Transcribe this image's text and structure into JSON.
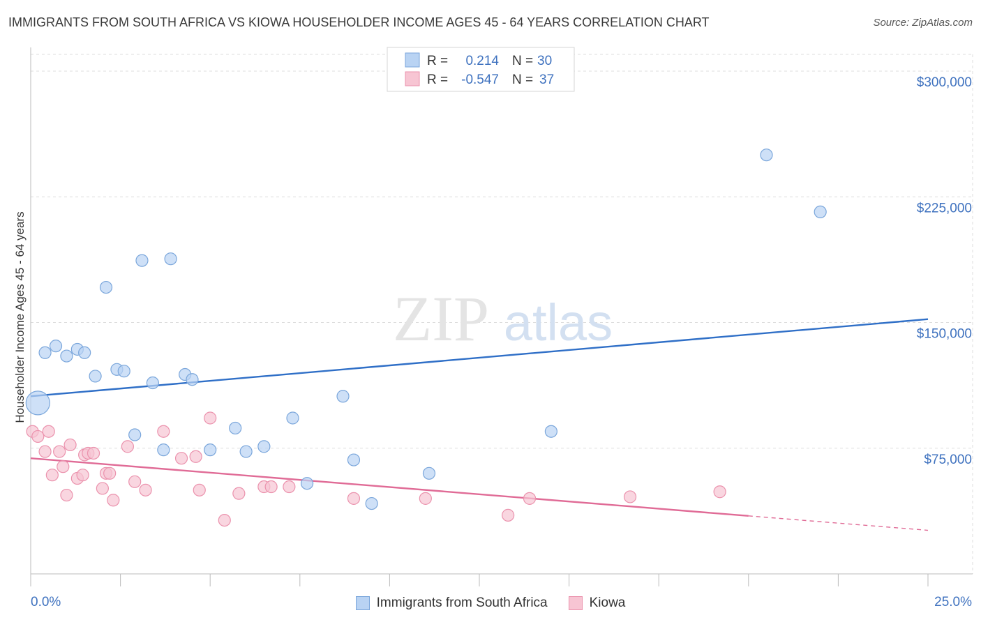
{
  "title": "IMMIGRANTS FROM SOUTH AFRICA VS KIOWA HOUSEHOLDER INCOME AGES 45 - 64 YEARS CORRELATION CHART",
  "source": "Source: ZipAtlas.com",
  "watermark": {
    "zip": "ZIP",
    "atlas": "atlas"
  },
  "colors": {
    "blue_fill": "#b9d3f3",
    "blue_stroke": "#7aa6db",
    "blue_line": "#2f6fc7",
    "pink_fill": "#f7c5d3",
    "pink_stroke": "#eb92ad",
    "pink_line": "#e06b96",
    "axis_text": "#3f72bf",
    "grid": "#dddddd"
  },
  "legend_top": [
    {
      "r_label": "R =",
      "r_value": "0.214",
      "n_label": "N =",
      "n_value": "30",
      "series": "blue"
    },
    {
      "r_label": "R =",
      "r_value": "-0.547",
      "n_label": "N =",
      "n_value": "37",
      "series": "pink"
    }
  ],
  "chart_data": {
    "type": "scatter",
    "title": "IMMIGRANTS FROM SOUTH AFRICA VS KIOWA HOUSEHOLDER INCOME AGES 45 - 64 YEARS CORRELATION CHART",
    "xlabel": "",
    "ylabel": "Householder Income Ages 45 - 64 years",
    "xlim": [
      0,
      25
    ],
    "ylim": [
      0,
      310000
    ],
    "x_tick_labels": [
      "0.0%",
      "25.0%"
    ],
    "y_ticks": [
      75000,
      150000,
      225000,
      300000
    ],
    "y_tick_labels": [
      "$75,000",
      "$150,000",
      "$225,000",
      "$300,000"
    ],
    "grid": true,
    "legend_placement": "top-center",
    "series": [
      {
        "name": "Immigrants from South Africa",
        "color": "#7aa6db",
        "points": [
          [
            0.2,
            102000,
            "large"
          ],
          [
            0.4,
            132000
          ],
          [
            0.7,
            136000
          ],
          [
            1.0,
            130000
          ],
          [
            1.3,
            134000
          ],
          [
            1.5,
            132000
          ],
          [
            1.8,
            118000
          ],
          [
            2.1,
            171000
          ],
          [
            2.4,
            122000
          ],
          [
            2.6,
            121000
          ],
          [
            2.9,
            83000
          ],
          [
            3.1,
            187000
          ],
          [
            3.4,
            114000
          ],
          [
            3.7,
            74000
          ],
          [
            3.9,
            188000
          ],
          [
            4.3,
            119000
          ],
          [
            4.5,
            116000
          ],
          [
            5.0,
            74000
          ],
          [
            5.7,
            87000
          ],
          [
            6.0,
            73000
          ],
          [
            6.5,
            76000
          ],
          [
            7.3,
            93000
          ],
          [
            7.7,
            54000
          ],
          [
            8.7,
            106000
          ],
          [
            9.0,
            68000
          ],
          [
            9.5,
            42000
          ],
          [
            11.1,
            60000
          ],
          [
            14.5,
            85000
          ],
          [
            20.5,
            250000
          ],
          [
            22.0,
            216000
          ]
        ],
        "trend": {
          "x": [
            0,
            25
          ],
          "y": [
            106000,
            152000
          ],
          "dashed_from": null
        }
      },
      {
        "name": "Kiowa",
        "color": "#eb92ad",
        "points": [
          [
            0.05,
            85000
          ],
          [
            0.2,
            82000
          ],
          [
            0.4,
            73000
          ],
          [
            0.5,
            85000
          ],
          [
            0.6,
            59000
          ],
          [
            0.8,
            73000
          ],
          [
            0.9,
            64000
          ],
          [
            1.0,
            47000
          ],
          [
            1.1,
            77000
          ],
          [
            1.3,
            57000
          ],
          [
            1.45,
            59000
          ],
          [
            1.5,
            71000
          ],
          [
            1.6,
            72000
          ],
          [
            1.75,
            72000
          ],
          [
            2.0,
            51000
          ],
          [
            2.1,
            60000
          ],
          [
            2.2,
            60000
          ],
          [
            2.3,
            44000
          ],
          [
            2.7,
            76000
          ],
          [
            2.9,
            55000
          ],
          [
            3.2,
            50000
          ],
          [
            3.7,
            85000
          ],
          [
            4.2,
            69000
          ],
          [
            4.6,
            70000
          ],
          [
            4.7,
            50000
          ],
          [
            5.0,
            93000
          ],
          [
            5.4,
            32000
          ],
          [
            5.8,
            48000
          ],
          [
            6.5,
            52000
          ],
          [
            6.7,
            52000
          ],
          [
            7.2,
            52000
          ],
          [
            9.0,
            45000
          ],
          [
            11.0,
            45000
          ],
          [
            13.3,
            35000
          ],
          [
            13.9,
            45000
          ],
          [
            16.7,
            46000
          ],
          [
            19.2,
            49000
          ]
        ],
        "trend": {
          "x": [
            0,
            25
          ],
          "y": [
            69000,
            26000
          ],
          "dashed_from": 20
        }
      }
    ]
  },
  "legend_bottom": [
    {
      "label": "Immigrants from South Africa",
      "series": "blue"
    },
    {
      "label": "Kiowa",
      "series": "pink"
    }
  ]
}
